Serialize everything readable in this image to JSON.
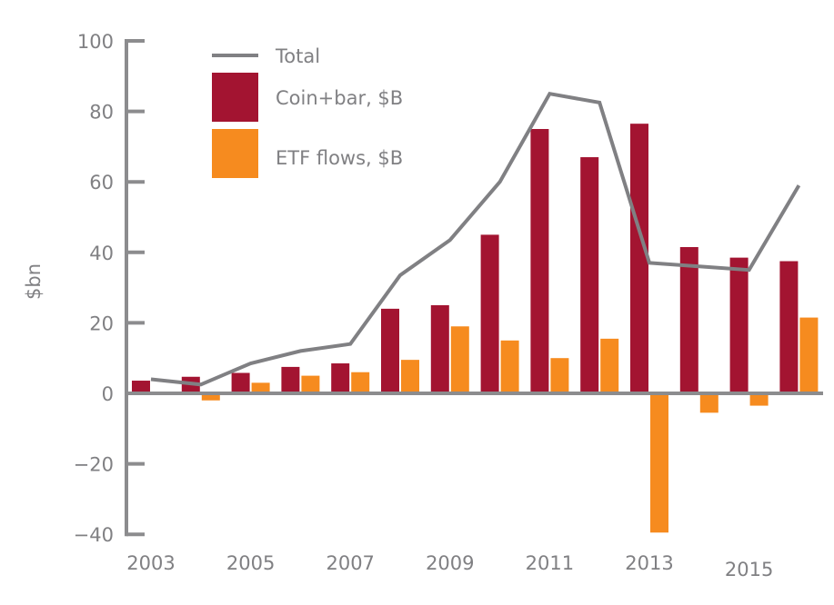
{
  "chart_data": {
    "type": "bar",
    "title": "",
    "xlabel": "",
    "ylabel": "$bn",
    "ylim": [
      -40,
      100
    ],
    "yticks": [
      100,
      80,
      60,
      40,
      20,
      0,
      -20,
      -40
    ],
    "ytick_labels": [
      "100",
      "80",
      "60",
      "40",
      "20",
      "0",
      "−20",
      "−40"
    ],
    "categories": [
      "2003",
      "2004",
      "2005",
      "2006",
      "2007",
      "2008",
      "2009",
      "2010",
      "2011",
      "2012",
      "2013",
      "2014",
      "2015",
      "2016"
    ],
    "xtick_labels": [
      "2003",
      "2005",
      "2007",
      "2009",
      "2011",
      "2013",
      "2015"
    ],
    "grid": false,
    "legend_position": "top-left",
    "series": [
      {
        "name": "Coin+bar, $B",
        "kind": "bar",
        "color": "#A31431",
        "values": [
          3.6,
          4.7,
          5.8,
          7.5,
          8.5,
          24,
          25,
          45,
          75,
          67,
          76.5,
          41.5,
          38.5,
          37.5
        ]
      },
      {
        "name": "ETF flows, $B",
        "kind": "bar",
        "color": "#F68B1F",
        "values": [
          0,
          -2,
          3,
          5,
          6,
          9.5,
          19,
          15,
          10,
          15.5,
          -39.5,
          -5.5,
          -3.5,
          21.5
        ]
      },
      {
        "name": "Total",
        "kind": "line",
        "color": "#808083",
        "values": [
          4,
          2.5,
          8.5,
          12,
          14,
          33.5,
          43.5,
          60,
          85,
          82.5,
          37,
          36,
          35,
          59
        ]
      }
    ],
    "legend": [
      {
        "label": "Total",
        "type": "line",
        "color": "#808083"
      },
      {
        "label": "Coin+bar, $B",
        "type": "box",
        "color": "#A31431"
      },
      {
        "label": "ETF flows, $B",
        "type": "box",
        "color": "#F68B1F"
      }
    ],
    "axis_color": "#8C8C8E"
  }
}
